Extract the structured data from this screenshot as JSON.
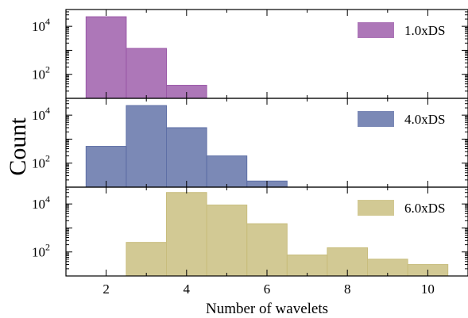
{
  "chart_data": {
    "type": "bar",
    "xlabel": "Number of wavelets",
    "ylabel": "Count",
    "xlim": [
      1,
      11
    ],
    "x_ticks": [
      "2",
      "4",
      "6",
      "8",
      "10"
    ],
    "y_scale": "log",
    "ylim": [
      10,
      50000
    ],
    "y_ticks": [
      {
        "label": "10",
        "exp": "2"
      },
      {
        "label": "10",
        "exp": "4"
      }
    ],
    "grid": false,
    "legend_position": "top-right",
    "bin_width": 1,
    "panels": [
      {
        "series_name": "1.0xDS",
        "color": "#9b59a8",
        "bins": [
          2,
          3,
          4
        ],
        "counts": [
          25000,
          1200,
          35
        ]
      },
      {
        "series_name": "4.0xDS",
        "color": "#5e6fa6",
        "bins": [
          2,
          3,
          4,
          5,
          6
        ],
        "counts": [
          500,
          25000,
          3000,
          200,
          18
        ]
      },
      {
        "series_name": "6.0xDS",
        "color": "#c8bd7d",
        "bins": [
          3,
          4,
          5,
          6,
          7,
          8,
          9,
          10
        ],
        "counts": [
          250,
          30000,
          9000,
          1500,
          75,
          150,
          50,
          30
        ]
      }
    ]
  }
}
